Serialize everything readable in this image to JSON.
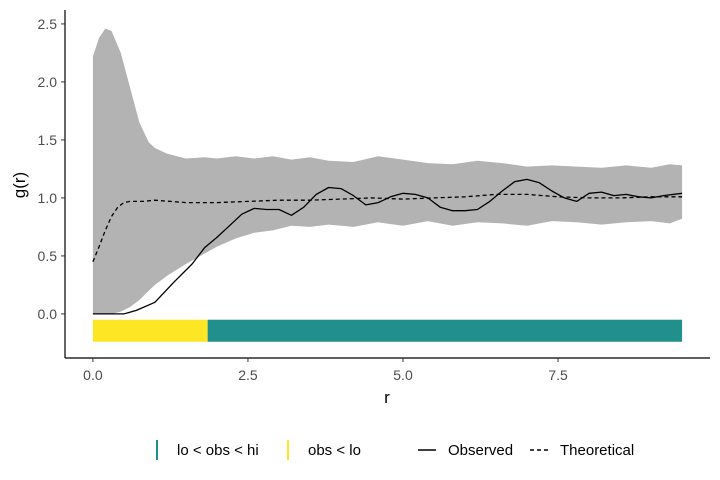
{
  "chart_data": {
    "type": "line",
    "title": "",
    "xlabel": "r",
    "ylabel": "g(r)",
    "xlim": [
      -0.45,
      9.95
    ],
    "ylim": [
      -0.38,
      2.62
    ],
    "x_ticks": [
      0.0,
      2.5,
      5.0,
      7.5
    ],
    "x_tick_labels": [
      "0.0",
      "2.5",
      "5.0",
      "7.5"
    ],
    "y_ticks": [
      0.0,
      0.5,
      1.0,
      1.5,
      2.0,
      2.5
    ],
    "y_tick_labels": [
      "0.0",
      "0.5",
      "1.0",
      "1.5",
      "2.0",
      "2.5"
    ],
    "grid": false,
    "legend_position": "bottom",
    "colors": {
      "envelope": "#b3b3b3",
      "lo_obs_hi": "#21908c",
      "obs_lt_lo": "#fde725",
      "line": "#000000"
    },
    "legend": [
      {
        "label": "lo < obs < hi",
        "kind": "bar",
        "color": "#21908c"
      },
      {
        "label": "obs < lo",
        "kind": "bar",
        "color": "#fde725"
      },
      {
        "label": "Observed",
        "kind": "solid"
      },
      {
        "label": "Theoretical",
        "kind": "dashed"
      }
    ],
    "envelope": {
      "x": [
        0.0,
        0.1,
        0.2,
        0.3,
        0.45,
        0.6,
        0.75,
        0.9,
        1.0,
        1.2,
        1.5,
        1.8,
        2.0,
        2.3,
        2.6,
        2.9,
        3.2,
        3.5,
        3.8,
        4.2,
        4.6,
        5.0,
        5.4,
        5.8,
        6.2,
        6.6,
        7.0,
        7.4,
        7.8,
        8.2,
        8.6,
        9.0,
        9.3,
        9.5
      ],
      "hi": [
        2.22,
        2.38,
        2.46,
        2.44,
        2.25,
        1.95,
        1.65,
        1.48,
        1.43,
        1.38,
        1.34,
        1.35,
        1.34,
        1.36,
        1.34,
        1.36,
        1.33,
        1.35,
        1.32,
        1.31,
        1.36,
        1.33,
        1.3,
        1.29,
        1.32,
        1.3,
        1.27,
        1.28,
        1.27,
        1.26,
        1.28,
        1.26,
        1.29,
        1.28
      ],
      "lo": [
        0.0,
        0.0,
        0.0,
        0.0,
        0.02,
        0.06,
        0.12,
        0.2,
        0.25,
        0.33,
        0.43,
        0.52,
        0.58,
        0.65,
        0.7,
        0.72,
        0.76,
        0.75,
        0.77,
        0.75,
        0.79,
        0.76,
        0.8,
        0.76,
        0.79,
        0.78,
        0.76,
        0.8,
        0.79,
        0.77,
        0.79,
        0.8,
        0.78,
        0.82
      ]
    },
    "series": [
      {
        "name": "Observed",
        "style": "solid",
        "x": [
          0.0,
          0.5,
          0.7,
          1.0,
          1.3,
          1.6,
          1.8,
          2.0,
          2.2,
          2.4,
          2.6,
          2.8,
          3.0,
          3.2,
          3.4,
          3.6,
          3.8,
          4.0,
          4.2,
          4.4,
          4.6,
          4.8,
          5.0,
          5.2,
          5.4,
          5.6,
          5.8,
          6.0,
          6.2,
          6.4,
          6.6,
          6.8,
          7.0,
          7.2,
          7.4,
          7.6,
          7.8,
          8.0,
          8.2,
          8.4,
          8.6,
          8.8,
          9.0,
          9.2,
          9.5
        ],
        "y": [
          0.0,
          0.0,
          0.03,
          0.1,
          0.27,
          0.43,
          0.57,
          0.66,
          0.76,
          0.86,
          0.91,
          0.9,
          0.9,
          0.85,
          0.92,
          1.03,
          1.09,
          1.08,
          1.02,
          0.94,
          0.96,
          1.01,
          1.04,
          1.03,
          1.0,
          0.92,
          0.89,
          0.89,
          0.9,
          0.97,
          1.06,
          1.14,
          1.16,
          1.13,
          1.06,
          1.0,
          0.97,
          1.04,
          1.05,
          1.02,
          1.03,
          1.01,
          1.0,
          1.02,
          1.04
        ]
      },
      {
        "name": "Theoretical",
        "style": "dashed",
        "x": [
          0.0,
          0.1,
          0.2,
          0.3,
          0.4,
          0.5,
          0.6,
          0.8,
          1.0,
          1.5,
          2.0,
          2.5,
          3.0,
          3.5,
          4.0,
          4.5,
          5.0,
          5.5,
          6.0,
          6.5,
          7.0,
          7.5,
          8.0,
          8.5,
          9.0,
          9.5
        ],
        "y": [
          0.45,
          0.58,
          0.72,
          0.84,
          0.92,
          0.96,
          0.97,
          0.97,
          0.98,
          0.96,
          0.96,
          0.97,
          0.98,
          0.98,
          0.99,
          1.0,
          0.99,
          1.0,
          1.01,
          1.03,
          1.03,
          1.01,
          1.0,
          1.0,
          1.01,
          1.01
        ]
      }
    ],
    "status_band": {
      "y_top": -0.05,
      "y_bottom": -0.24,
      "segments": [
        {
          "from": 0.0,
          "to": 1.85,
          "status": "obs < lo",
          "color": "#fde725"
        },
        {
          "from": 1.85,
          "to": 9.5,
          "status": "lo < obs < hi",
          "color": "#21908c"
        }
      ]
    }
  }
}
